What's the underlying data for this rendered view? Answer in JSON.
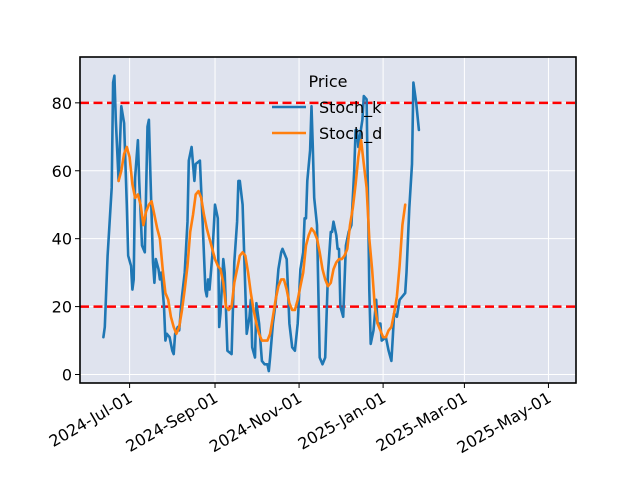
{
  "chart_data": {
    "type": "line",
    "title": "",
    "xlabel": "",
    "ylabel": "",
    "ylim": [
      -2.5,
      93.5
    ],
    "x_range": [
      "2024-05-26",
      "2025-05-21"
    ],
    "grid": true,
    "legend": {
      "title": "Price",
      "placement": "top-center"
    },
    "x_ticks": [
      {
        "date": "2024-07-01",
        "label": "2024-Jul-01"
      },
      {
        "date": "2024-09-01",
        "label": "2024-Sep-01"
      },
      {
        "date": "2024-11-01",
        "label": "2024-Nov-01"
      },
      {
        "date": "2025-01-01",
        "label": "2025-Jan-01"
      },
      {
        "date": "2025-03-01",
        "label": "2025-Mar-01"
      },
      {
        "date": "2025-05-01",
        "label": "2025-May-01"
      }
    ],
    "y_ticks": [
      {
        "value": 0,
        "label": "0"
      },
      {
        "value": 20,
        "label": "20"
      },
      {
        "value": 40,
        "label": "40"
      },
      {
        "value": 60,
        "label": "60"
      },
      {
        "value": 80,
        "label": "80"
      }
    ],
    "reference_lines": [
      {
        "value": 80,
        "color": "#ff0000",
        "style": "dashed"
      },
      {
        "value": 20,
        "color": "#ff0000",
        "style": "dashed"
      }
    ],
    "series": [
      {
        "name": "Stoch_k",
        "color": "#1f77b4",
        "points": [
          [
            "2024-06-12",
            11
          ],
          [
            "2024-06-13",
            14
          ],
          [
            "2024-06-15",
            35
          ],
          [
            "2024-06-18",
            55
          ],
          [
            "2024-06-19",
            86
          ],
          [
            "2024-06-20",
            88
          ],
          [
            "2024-06-21",
            75
          ],
          [
            "2024-06-23",
            57
          ],
          [
            "2024-06-25",
            79
          ],
          [
            "2024-06-27",
            74
          ],
          [
            "2024-06-29",
            50
          ],
          [
            "2024-06-30",
            35
          ],
          [
            "2024-07-02",
            32
          ],
          [
            "2024-07-03",
            25
          ],
          [
            "2024-07-04",
            28
          ],
          [
            "2024-07-05",
            58
          ],
          [
            "2024-07-07",
            69
          ],
          [
            "2024-07-08",
            57
          ],
          [
            "2024-07-10",
            38
          ],
          [
            "2024-07-12",
            36
          ],
          [
            "2024-07-14",
            73
          ],
          [
            "2024-07-15",
            75
          ],
          [
            "2024-07-16",
            60
          ],
          [
            "2024-07-18",
            33
          ],
          [
            "2024-07-19",
            27
          ],
          [
            "2024-07-20",
            34
          ],
          [
            "2024-07-22",
            31
          ],
          [
            "2024-07-23",
            28
          ],
          [
            "2024-07-24",
            30
          ],
          [
            "2024-07-26",
            20
          ],
          [
            "2024-07-27",
            10
          ],
          [
            "2024-07-28",
            12
          ],
          [
            "2024-07-30",
            11
          ],
          [
            "2024-08-01",
            7
          ],
          [
            "2024-08-02",
            6
          ],
          [
            "2024-08-03",
            12
          ],
          [
            "2024-08-05",
            14
          ],
          [
            "2024-08-06",
            13
          ],
          [
            "2024-08-08",
            23
          ],
          [
            "2024-08-10",
            30
          ],
          [
            "2024-08-12",
            45
          ],
          [
            "2024-08-13",
            63
          ],
          [
            "2024-08-15",
            67
          ],
          [
            "2024-08-17",
            57
          ],
          [
            "2024-08-18",
            62
          ],
          [
            "2024-08-21",
            63
          ],
          [
            "2024-08-23",
            45
          ],
          [
            "2024-08-25",
            25
          ],
          [
            "2024-08-26",
            23
          ],
          [
            "2024-08-27",
            28
          ],
          [
            "2024-08-28",
            25
          ],
          [
            "2024-08-30",
            35
          ],
          [
            "2024-09-01",
            50
          ],
          [
            "2024-09-03",
            46
          ],
          [
            "2024-09-04",
            14
          ],
          [
            "2024-09-05",
            18
          ],
          [
            "2024-09-07",
            34
          ],
          [
            "2024-09-08",
            30
          ],
          [
            "2024-09-10",
            7
          ],
          [
            "2024-09-13",
            6
          ],
          [
            "2024-09-15",
            33
          ],
          [
            "2024-09-17",
            45
          ],
          [
            "2024-09-18",
            57
          ],
          [
            "2024-09-19",
            57
          ],
          [
            "2024-09-21",
            50
          ],
          [
            "2024-09-23",
            25
          ],
          [
            "2024-09-24",
            12
          ],
          [
            "2024-09-26",
            17
          ],
          [
            "2024-09-27",
            22
          ],
          [
            "2024-09-28",
            8
          ],
          [
            "2024-09-30",
            5
          ],
          [
            "2024-10-01",
            21
          ],
          [
            "2024-10-03",
            15
          ],
          [
            "2024-10-05",
            4
          ],
          [
            "2024-10-07",
            3
          ],
          [
            "2024-10-09",
            3
          ],
          [
            "2024-10-10",
            1
          ],
          [
            "2024-10-11",
            5
          ],
          [
            "2024-10-13",
            15
          ],
          [
            "2024-10-15",
            21
          ],
          [
            "2024-10-17",
            31
          ],
          [
            "2024-10-19",
            36
          ],
          [
            "2024-10-20",
            37
          ],
          [
            "2024-10-21",
            36
          ],
          [
            "2024-10-23",
            34
          ],
          [
            "2024-10-25",
            15
          ],
          [
            "2024-10-27",
            8
          ],
          [
            "2024-10-29",
            7
          ],
          [
            "2024-10-31",
            15
          ],
          [
            "2024-11-02",
            31
          ],
          [
            "2024-11-04",
            36
          ],
          [
            "2024-11-05",
            46
          ],
          [
            "2024-11-06",
            46
          ],
          [
            "2024-11-07",
            57
          ],
          [
            "2024-11-09",
            66
          ],
          [
            "2024-11-10",
            79
          ],
          [
            "2024-11-11",
            67
          ],
          [
            "2024-11-12",
            52
          ],
          [
            "2024-11-14",
            44
          ],
          [
            "2024-11-16",
            5
          ],
          [
            "2024-11-18",
            3
          ],
          [
            "2024-11-20",
            5
          ],
          [
            "2024-11-22",
            30
          ],
          [
            "2024-11-24",
            42
          ],
          [
            "2024-11-25",
            42
          ],
          [
            "2024-11-26",
            45
          ],
          [
            "2024-11-28",
            41
          ],
          [
            "2024-11-29",
            37
          ],
          [
            "2024-11-30",
            37
          ],
          [
            "2024-12-01",
            20
          ],
          [
            "2024-12-03",
            17
          ],
          [
            "2024-12-05",
            38
          ],
          [
            "2024-12-07",
            42
          ],
          [
            "2024-12-09",
            44
          ],
          [
            "2024-12-11",
            60
          ],
          [
            "2024-12-12",
            72
          ],
          [
            "2024-12-13",
            72
          ],
          [
            "2024-12-14",
            67
          ],
          [
            "2024-12-17",
            75
          ],
          [
            "2024-12-18",
            82
          ],
          [
            "2024-12-20",
            81
          ],
          [
            "2024-12-22",
            25
          ],
          [
            "2024-12-23",
            9
          ],
          [
            "2024-12-25",
            13
          ],
          [
            "2024-12-27",
            22
          ],
          [
            "2024-12-28",
            15
          ],
          [
            "2024-12-30",
            15
          ],
          [
            "2024-12-31",
            10
          ],
          [
            "2025-01-03",
            11
          ],
          [
            "2025-01-05",
            7
          ],
          [
            "2025-01-07",
            4
          ],
          [
            "2025-01-08",
            11
          ],
          [
            "2025-01-09",
            18
          ],
          [
            "2025-01-11",
            17
          ],
          [
            "2025-01-13",
            22
          ],
          [
            "2025-01-15",
            23
          ],
          [
            "2025-01-17",
            24
          ],
          [
            "2025-01-18",
            30
          ],
          [
            "2025-01-20",
            49
          ],
          [
            "2025-01-22",
            62
          ],
          [
            "2025-01-23",
            86
          ],
          [
            "2025-01-25",
            80
          ],
          [
            "2025-01-27",
            72
          ]
        ]
      },
      {
        "name": "Stoch_d",
        "color": "#ff7f0e",
        "points": [
          [
            "2024-06-23",
            57
          ],
          [
            "2024-06-25",
            60
          ],
          [
            "2024-06-27",
            65
          ],
          [
            "2024-06-29",
            67
          ],
          [
            "2024-07-01",
            64
          ],
          [
            "2024-07-03",
            56
          ],
          [
            "2024-07-05",
            52
          ],
          [
            "2024-07-07",
            53
          ],
          [
            "2024-07-09",
            50
          ],
          [
            "2024-07-11",
            44
          ],
          [
            "2024-07-13",
            48
          ],
          [
            "2024-07-15",
            50
          ],
          [
            "2024-07-17",
            51
          ],
          [
            "2024-07-19",
            47
          ],
          [
            "2024-07-21",
            43
          ],
          [
            "2024-07-23",
            40
          ],
          [
            "2024-07-25",
            31
          ],
          [
            "2024-07-27",
            24
          ],
          [
            "2024-07-29",
            22
          ],
          [
            "2024-07-31",
            17
          ],
          [
            "2024-08-02",
            14
          ],
          [
            "2024-08-04",
            12
          ],
          [
            "2024-08-06",
            14
          ],
          [
            "2024-08-08",
            19
          ],
          [
            "2024-08-10",
            25
          ],
          [
            "2024-08-12",
            32
          ],
          [
            "2024-08-14",
            42
          ],
          [
            "2024-08-16",
            47
          ],
          [
            "2024-08-18",
            53
          ],
          [
            "2024-08-20",
            54
          ],
          [
            "2024-08-22",
            52
          ],
          [
            "2024-08-24",
            47
          ],
          [
            "2024-08-26",
            43
          ],
          [
            "2024-08-28",
            40
          ],
          [
            "2024-08-30",
            37
          ],
          [
            "2024-09-01",
            34
          ],
          [
            "2024-09-03",
            32
          ],
          [
            "2024-09-05",
            31
          ],
          [
            "2024-09-07",
            27
          ],
          [
            "2024-09-09",
            20
          ],
          [
            "2024-09-11",
            19
          ],
          [
            "2024-09-13",
            20
          ],
          [
            "2024-09-15",
            27
          ],
          [
            "2024-09-17",
            31
          ],
          [
            "2024-09-19",
            35
          ],
          [
            "2024-09-21",
            36
          ],
          [
            "2024-09-23",
            35
          ],
          [
            "2024-09-25",
            30
          ],
          [
            "2024-09-27",
            24
          ],
          [
            "2024-09-29",
            19
          ],
          [
            "2024-10-01",
            15
          ],
          [
            "2024-10-03",
            12
          ],
          [
            "2024-10-05",
            10
          ],
          [
            "2024-10-07",
            10
          ],
          [
            "2024-10-09",
            10
          ],
          [
            "2024-10-11",
            12
          ],
          [
            "2024-10-13",
            17
          ],
          [
            "2024-10-15",
            22
          ],
          [
            "2024-10-17",
            26
          ],
          [
            "2024-10-19",
            28
          ],
          [
            "2024-10-21",
            28
          ],
          [
            "2024-10-23",
            25
          ],
          [
            "2024-10-25",
            21
          ],
          [
            "2024-10-27",
            19
          ],
          [
            "2024-10-29",
            19
          ],
          [
            "2024-10-31",
            22
          ],
          [
            "2024-11-02",
            26
          ],
          [
            "2024-11-04",
            30
          ],
          [
            "2024-11-06",
            38
          ],
          [
            "2024-11-08",
            41
          ],
          [
            "2024-11-10",
            43
          ],
          [
            "2024-11-12",
            42
          ],
          [
            "2024-11-14",
            40
          ],
          [
            "2024-11-16",
            36
          ],
          [
            "2024-11-18",
            31
          ],
          [
            "2024-11-20",
            28
          ],
          [
            "2024-11-22",
            26
          ],
          [
            "2024-11-24",
            27
          ],
          [
            "2024-11-26",
            31
          ],
          [
            "2024-11-28",
            33
          ],
          [
            "2024-11-30",
            34
          ],
          [
            "2024-12-02",
            34
          ],
          [
            "2024-12-04",
            35
          ],
          [
            "2024-12-06",
            37
          ],
          [
            "2024-12-08",
            44
          ],
          [
            "2024-12-10",
            49
          ],
          [
            "2024-12-12",
            56
          ],
          [
            "2024-12-14",
            64
          ],
          [
            "2024-12-16",
            69
          ],
          [
            "2024-12-18",
            62
          ],
          [
            "2024-12-20",
            55
          ],
          [
            "2024-12-22",
            40
          ],
          [
            "2024-12-24",
            31
          ],
          [
            "2024-12-26",
            20
          ],
          [
            "2024-12-28",
            15
          ],
          [
            "2024-12-30",
            13
          ],
          [
            "2025-01-01",
            11
          ],
          [
            "2025-01-03",
            11
          ],
          [
            "2025-01-05",
            13
          ],
          [
            "2025-01-07",
            14
          ],
          [
            "2025-01-09",
            18
          ],
          [
            "2025-01-11",
            23
          ],
          [
            "2025-01-13",
            32
          ],
          [
            "2025-01-15",
            44
          ],
          [
            "2025-01-17",
            50
          ]
        ]
      }
    ]
  }
}
